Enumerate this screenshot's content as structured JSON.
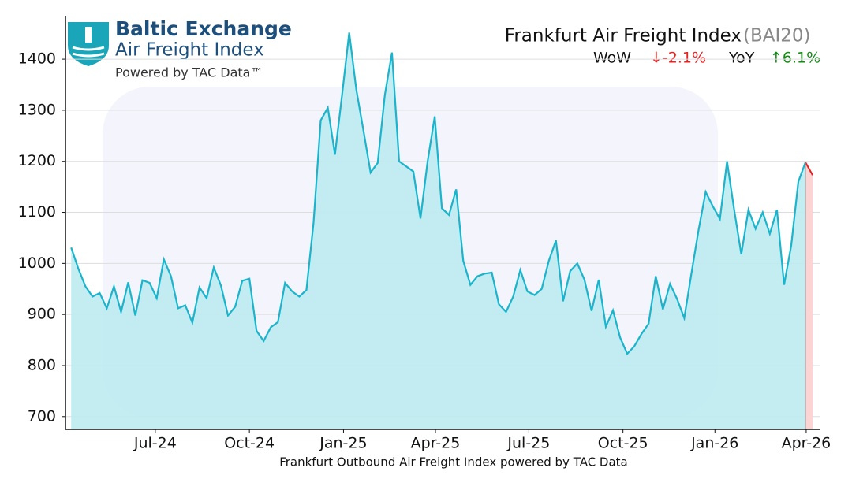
{
  "header": {
    "brand": "Baltic Exchange",
    "product": "Air Freight Index",
    "powered": "Powered by TAC Data™"
  },
  "chart_data": {
    "type": "area",
    "title": "Frankfurt Air Freight Index",
    "title_code": "(BAI20)",
    "wow": {
      "label": "WoW",
      "change": "↓-2.1%"
    },
    "yoy": {
      "label": "YoY",
      "change": "↑6.1%"
    },
    "x_label": "Frankfurt Outbound Air Freight Index powered by TAC Data",
    "values": [
      1031,
      990,
      955,
      935,
      942,
      912,
      955,
      905,
      963,
      898,
      967,
      962,
      932,
      1008,
      975,
      912,
      918,
      884,
      953,
      932,
      992,
      957,
      898,
      915,
      966,
      970,
      868,
      848,
      875,
      885,
      962,
      945,
      935,
      948,
      1080,
      1280,
      1305,
      1213,
      1330,
      1452,
      1340,
      1260,
      1178,
      1197,
      1330,
      1413,
      1200,
      1190,
      1180,
      1088,
      1200,
      1288,
      1108,
      1095,
      1145,
      1005,
      958,
      975,
      980,
      982,
      920,
      905,
      935,
      987,
      945,
      938,
      950,
      1005,
      1045,
      926,
      985,
      1000,
      968,
      907,
      968,
      876,
      908,
      855,
      823,
      838,
      862,
      882,
      975,
      910,
      960,
      930,
      893,
      980,
      1065,
      1140,
      1112,
      1087,
      1200,
      1105,
      1018,
      1105,
      1068,
      1100,
      1058,
      1105,
      958,
      1035,
      1160,
      1198,
      1173
    ],
    "color": "#1ab4cc",
    "fill_color": "#bdebf0",
    "last_color": "#e82020",
    "last_fill_color": "#fbd4d4",
    "xlim": [
      -0.8,
      105.1
    ],
    "xticks": [
      {
        "value": 11.8,
        "label": "Jul-24"
      },
      {
        "value": 25.0,
        "label": "Oct-24"
      },
      {
        "value": 38.2,
        "label": "Jan-25"
      },
      {
        "value": 51.1,
        "label": "Apr-25"
      },
      {
        "value": 64.2,
        "label": "Jul-25"
      },
      {
        "value": 77.4,
        "label": "Oct-25"
      },
      {
        "value": 90.3,
        "label": "Jan-26"
      },
      {
        "value": 103.1,
        "label": "Apr-26"
      }
    ],
    "ylim": [
      675,
      1485
    ],
    "yticks": [
      700,
      800,
      900,
      1000,
      1100,
      1200,
      1300,
      1400
    ],
    "grid": true
  }
}
